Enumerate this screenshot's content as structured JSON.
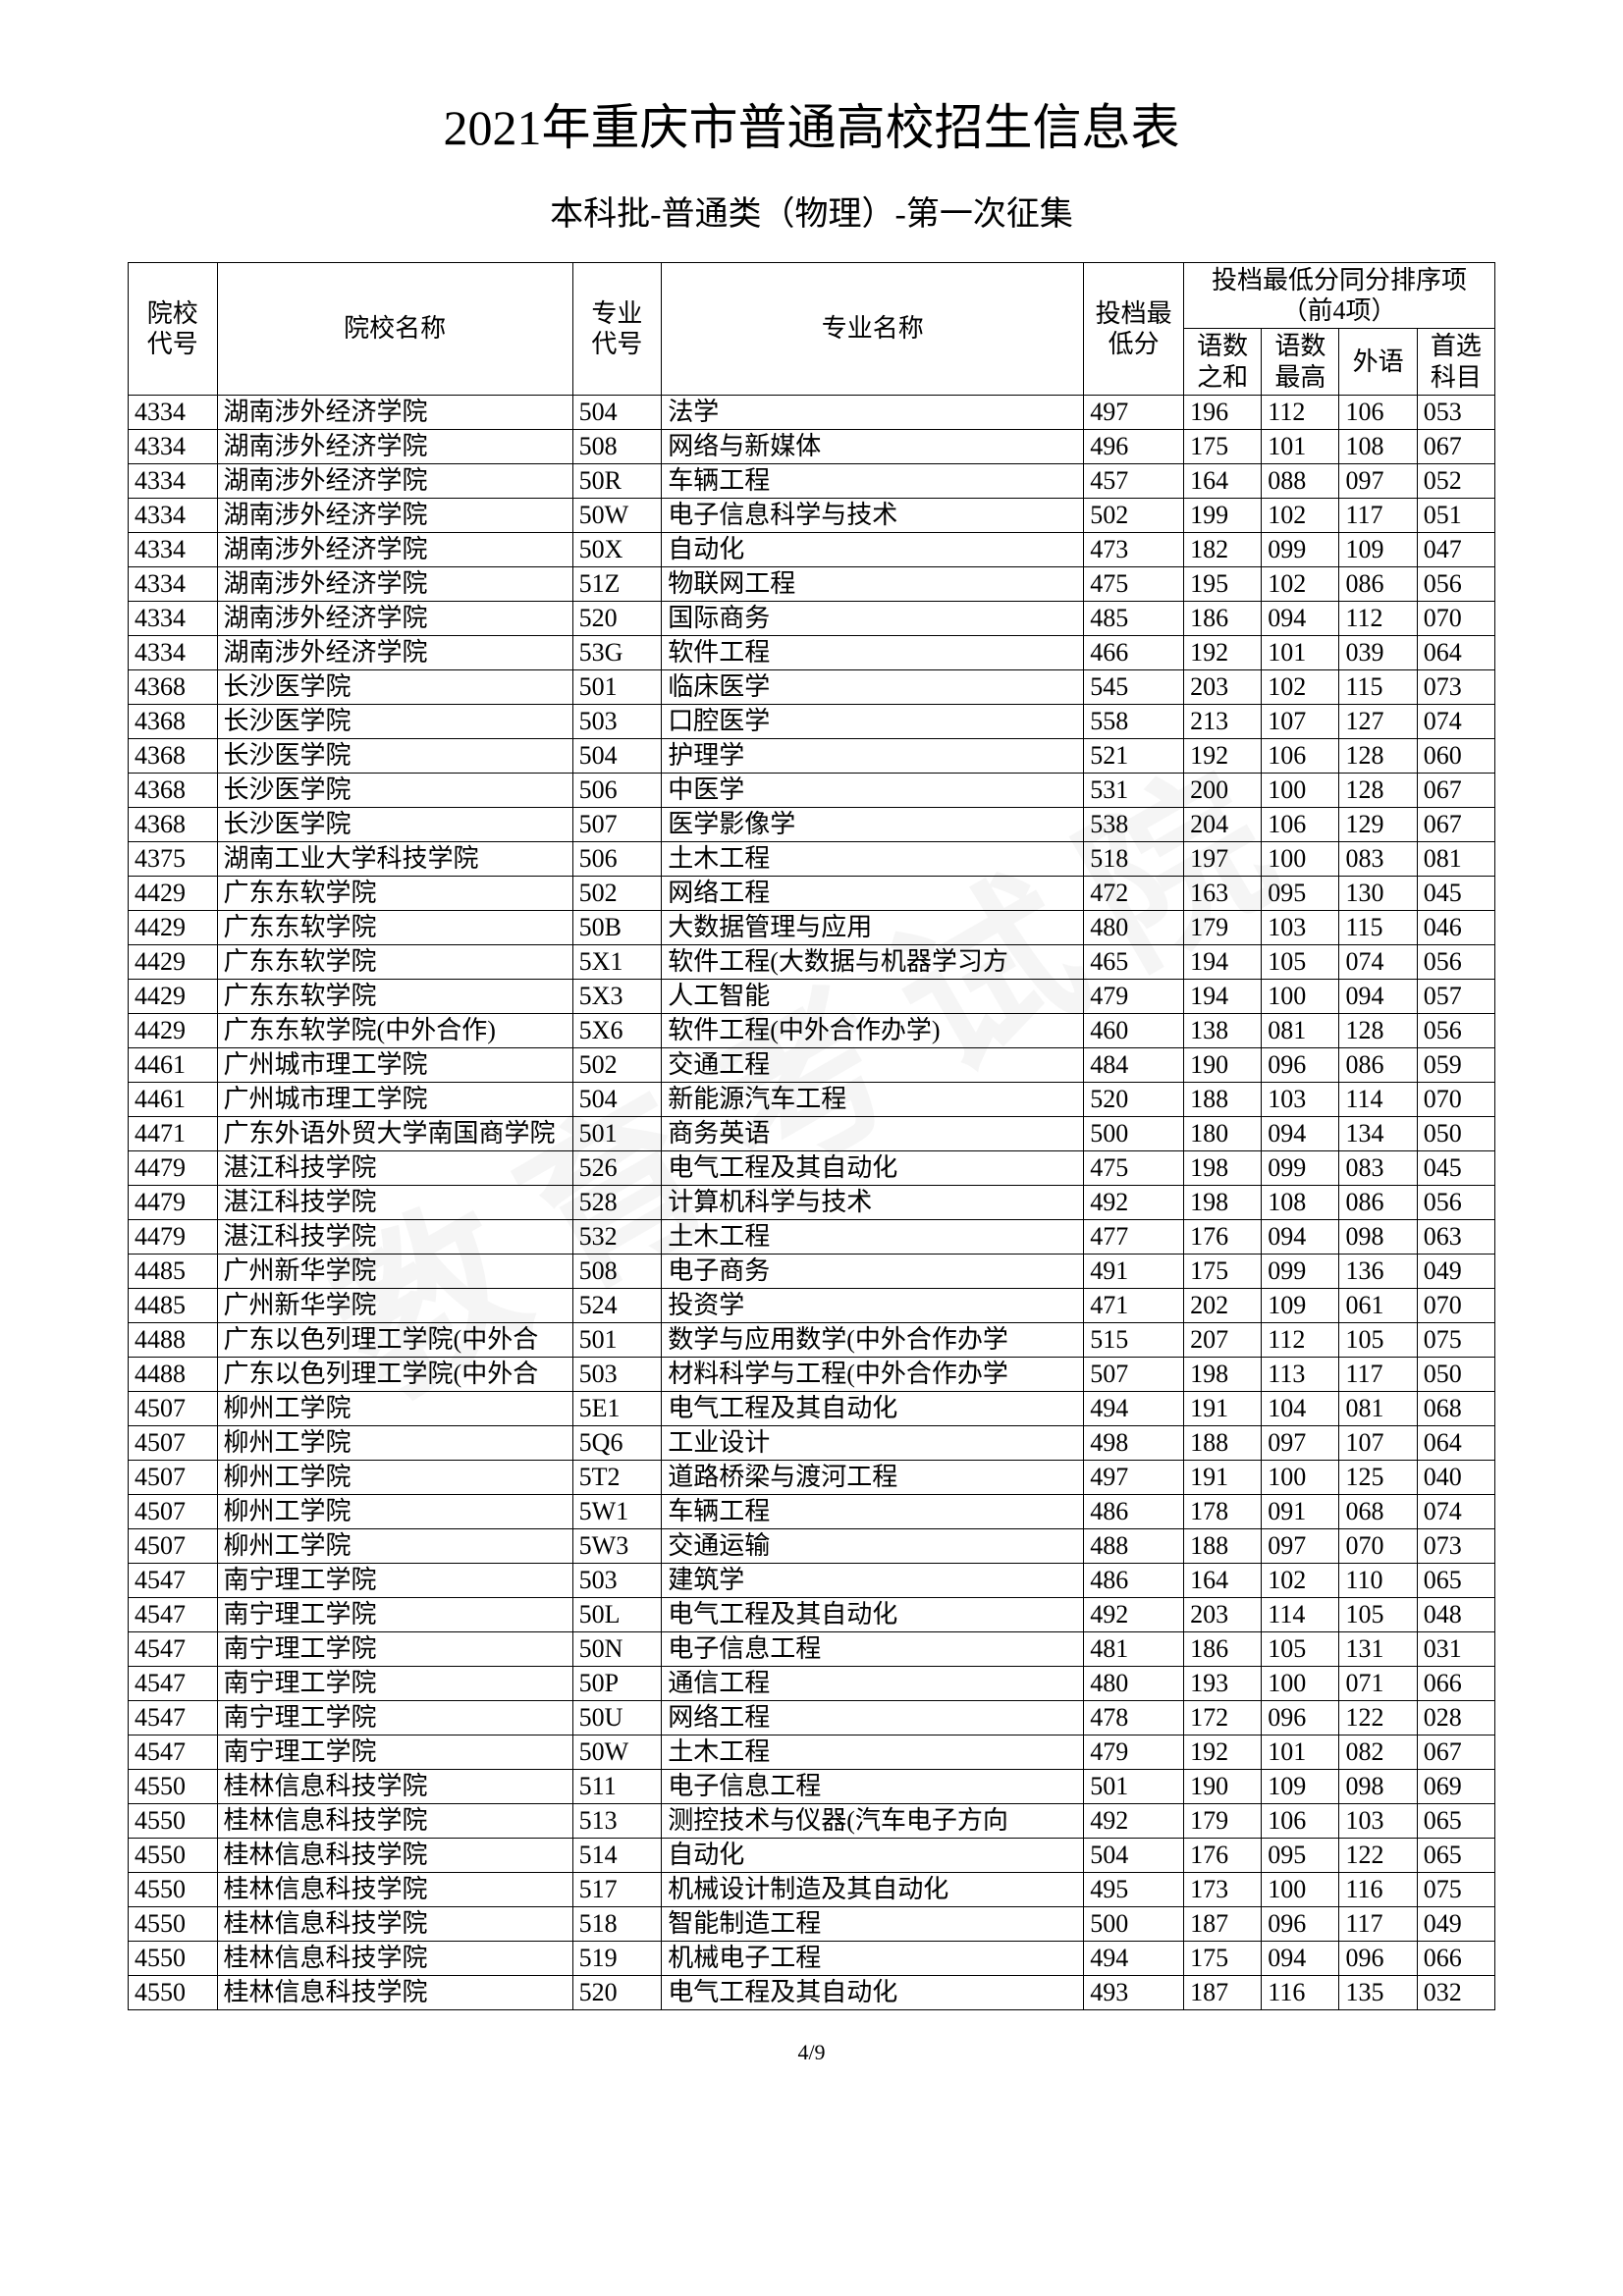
{
  "title": "2021年重庆市普通高校招生信息表",
  "subtitle": "本科批-普通类（物理）-第一次征集",
  "page_indicator": "4/9",
  "watermark_text": "教育考试院",
  "colors": {
    "text": "#000000",
    "background": "#ffffff",
    "border": "#000000",
    "watermark": "rgba(0,0,0,0.04)"
  },
  "headers": {
    "school_code": "院校代号",
    "school_name": "院校名称",
    "major_code": "专业代号",
    "major_name": "专业名称",
    "min_score": "投档最低分",
    "sort_group": "投档最低分同分排序项（前4项）",
    "s1": "语数之和",
    "s2": "语数最高",
    "s3": "外语",
    "s4": "首选科目"
  },
  "rows": [
    {
      "c": "4334",
      "n": "湖南涉外经济学院",
      "mc": "504",
      "mn": "法学",
      "sc": "497",
      "s1": "196",
      "s2": "112",
      "s3": "106",
      "s4": "053"
    },
    {
      "c": "4334",
      "n": "湖南涉外经济学院",
      "mc": "508",
      "mn": "网络与新媒体",
      "sc": "496",
      "s1": "175",
      "s2": "101",
      "s3": "108",
      "s4": "067"
    },
    {
      "c": "4334",
      "n": "湖南涉外经济学院",
      "mc": "50R",
      "mn": "车辆工程",
      "sc": "457",
      "s1": "164",
      "s2": "088",
      "s3": "097",
      "s4": "052"
    },
    {
      "c": "4334",
      "n": "湖南涉外经济学院",
      "mc": "50W",
      "mn": "电子信息科学与技术",
      "sc": "502",
      "s1": "199",
      "s2": "102",
      "s3": "117",
      "s4": "051"
    },
    {
      "c": "4334",
      "n": "湖南涉外经济学院",
      "mc": "50X",
      "mn": "自动化",
      "sc": "473",
      "s1": "182",
      "s2": "099",
      "s3": "109",
      "s4": "047"
    },
    {
      "c": "4334",
      "n": "湖南涉外经济学院",
      "mc": "51Z",
      "mn": "物联网工程",
      "sc": "475",
      "s1": "195",
      "s2": "102",
      "s3": "086",
      "s4": "056"
    },
    {
      "c": "4334",
      "n": "湖南涉外经济学院",
      "mc": "520",
      "mn": "国际商务",
      "sc": "485",
      "s1": "186",
      "s2": "094",
      "s3": "112",
      "s4": "070"
    },
    {
      "c": "4334",
      "n": "湖南涉外经济学院",
      "mc": "53G",
      "mn": "软件工程",
      "sc": "466",
      "s1": "192",
      "s2": "101",
      "s3": "039",
      "s4": "064"
    },
    {
      "c": "4368",
      "n": "长沙医学院",
      "mc": "501",
      "mn": "临床医学",
      "sc": "545",
      "s1": "203",
      "s2": "102",
      "s3": "115",
      "s4": "073"
    },
    {
      "c": "4368",
      "n": "长沙医学院",
      "mc": "503",
      "mn": "口腔医学",
      "sc": "558",
      "s1": "213",
      "s2": "107",
      "s3": "127",
      "s4": "074"
    },
    {
      "c": "4368",
      "n": "长沙医学院",
      "mc": "504",
      "mn": "护理学",
      "sc": "521",
      "s1": "192",
      "s2": "106",
      "s3": "128",
      "s4": "060"
    },
    {
      "c": "4368",
      "n": "长沙医学院",
      "mc": "506",
      "mn": "中医学",
      "sc": "531",
      "s1": "200",
      "s2": "100",
      "s3": "128",
      "s4": "067"
    },
    {
      "c": "4368",
      "n": "长沙医学院",
      "mc": "507",
      "mn": "医学影像学",
      "sc": "538",
      "s1": "204",
      "s2": "106",
      "s3": "129",
      "s4": "067"
    },
    {
      "c": "4375",
      "n": "湖南工业大学科技学院",
      "mc": "506",
      "mn": "土木工程",
      "sc": "518",
      "s1": "197",
      "s2": "100",
      "s3": "083",
      "s4": "081"
    },
    {
      "c": "4429",
      "n": "广东东软学院",
      "mc": "502",
      "mn": "网络工程",
      "sc": "472",
      "s1": "163",
      "s2": "095",
      "s3": "130",
      "s4": "045"
    },
    {
      "c": "4429",
      "n": "广东东软学院",
      "mc": "50B",
      "mn": "大数据管理与应用",
      "sc": "480",
      "s1": "179",
      "s2": "103",
      "s3": "115",
      "s4": "046"
    },
    {
      "c": "4429",
      "n": "广东东软学院",
      "mc": "5X1",
      "mn": "软件工程(大数据与机器学习方",
      "sc": "465",
      "s1": "194",
      "s2": "105",
      "s3": "074",
      "s4": "056"
    },
    {
      "c": "4429",
      "n": "广东东软学院",
      "mc": "5X3",
      "mn": "人工智能",
      "sc": "479",
      "s1": "194",
      "s2": "100",
      "s3": "094",
      "s4": "057"
    },
    {
      "c": "4429",
      "n": "广东东软学院(中外合作)",
      "mc": "5X6",
      "mn": "软件工程(中外合作办学)",
      "sc": "460",
      "s1": "138",
      "s2": "081",
      "s3": "128",
      "s4": "056"
    },
    {
      "c": "4461",
      "n": "广州城市理工学院",
      "mc": "502",
      "mn": "交通工程",
      "sc": "484",
      "s1": "190",
      "s2": "096",
      "s3": "086",
      "s4": "059"
    },
    {
      "c": "4461",
      "n": "广州城市理工学院",
      "mc": "504",
      "mn": "新能源汽车工程",
      "sc": "520",
      "s1": "188",
      "s2": "103",
      "s3": "114",
      "s4": "070"
    },
    {
      "c": "4471",
      "n": "广东外语外贸大学南国商学院",
      "mc": "501",
      "mn": "商务英语",
      "sc": "500",
      "s1": "180",
      "s2": "094",
      "s3": "134",
      "s4": "050"
    },
    {
      "c": "4479",
      "n": "湛江科技学院",
      "mc": "526",
      "mn": "电气工程及其自动化",
      "sc": "475",
      "s1": "198",
      "s2": "099",
      "s3": "083",
      "s4": "045"
    },
    {
      "c": "4479",
      "n": "湛江科技学院",
      "mc": "528",
      "mn": "计算机科学与技术",
      "sc": "492",
      "s1": "198",
      "s2": "108",
      "s3": "086",
      "s4": "056"
    },
    {
      "c": "4479",
      "n": "湛江科技学院",
      "mc": "532",
      "mn": "土木工程",
      "sc": "477",
      "s1": "176",
      "s2": "094",
      "s3": "098",
      "s4": "063"
    },
    {
      "c": "4485",
      "n": "广州新华学院",
      "mc": "508",
      "mn": "电子商务",
      "sc": "491",
      "s1": "175",
      "s2": "099",
      "s3": "136",
      "s4": "049"
    },
    {
      "c": "4485",
      "n": "广州新华学院",
      "mc": "524",
      "mn": "投资学",
      "sc": "471",
      "s1": "202",
      "s2": "109",
      "s3": "061",
      "s4": "070"
    },
    {
      "c": "4488",
      "n": "广东以色列理工学院(中外合",
      "mc": "501",
      "mn": "数学与应用数学(中外合作办学",
      "sc": "515",
      "s1": "207",
      "s2": "112",
      "s3": "105",
      "s4": "075"
    },
    {
      "c": "4488",
      "n": "广东以色列理工学院(中外合",
      "mc": "503",
      "mn": "材料科学与工程(中外合作办学",
      "sc": "507",
      "s1": "198",
      "s2": "113",
      "s3": "117",
      "s4": "050"
    },
    {
      "c": "4507",
      "n": "柳州工学院",
      "mc": "5E1",
      "mn": "电气工程及其自动化",
      "sc": "494",
      "s1": "191",
      "s2": "104",
      "s3": "081",
      "s4": "068"
    },
    {
      "c": "4507",
      "n": "柳州工学院",
      "mc": "5Q6",
      "mn": "工业设计",
      "sc": "498",
      "s1": "188",
      "s2": "097",
      "s3": "107",
      "s4": "064"
    },
    {
      "c": "4507",
      "n": "柳州工学院",
      "mc": "5T2",
      "mn": "道路桥梁与渡河工程",
      "sc": "497",
      "s1": "191",
      "s2": "100",
      "s3": "125",
      "s4": "040"
    },
    {
      "c": "4507",
      "n": "柳州工学院",
      "mc": "5W1",
      "mn": "车辆工程",
      "sc": "486",
      "s1": "178",
      "s2": "091",
      "s3": "068",
      "s4": "074"
    },
    {
      "c": "4507",
      "n": "柳州工学院",
      "mc": "5W3",
      "mn": "交通运输",
      "sc": "488",
      "s1": "188",
      "s2": "097",
      "s3": "070",
      "s4": "073"
    },
    {
      "c": "4547",
      "n": "南宁理工学院",
      "mc": "503",
      "mn": "建筑学",
      "sc": "486",
      "s1": "164",
      "s2": "102",
      "s3": "110",
      "s4": "065"
    },
    {
      "c": "4547",
      "n": "南宁理工学院",
      "mc": "50L",
      "mn": "电气工程及其自动化",
      "sc": "492",
      "s1": "203",
      "s2": "114",
      "s3": "105",
      "s4": "048"
    },
    {
      "c": "4547",
      "n": "南宁理工学院",
      "mc": "50N",
      "mn": "电子信息工程",
      "sc": "481",
      "s1": "186",
      "s2": "105",
      "s3": "131",
      "s4": "031"
    },
    {
      "c": "4547",
      "n": "南宁理工学院",
      "mc": "50P",
      "mn": "通信工程",
      "sc": "480",
      "s1": "193",
      "s2": "100",
      "s3": "071",
      "s4": "066"
    },
    {
      "c": "4547",
      "n": "南宁理工学院",
      "mc": "50U",
      "mn": "网络工程",
      "sc": "478",
      "s1": "172",
      "s2": "096",
      "s3": "122",
      "s4": "028"
    },
    {
      "c": "4547",
      "n": "南宁理工学院",
      "mc": "50W",
      "mn": "土木工程",
      "sc": "479",
      "s1": "192",
      "s2": "101",
      "s3": "082",
      "s4": "067"
    },
    {
      "c": "4550",
      "n": "桂林信息科技学院",
      "mc": "511",
      "mn": "电子信息工程",
      "sc": "501",
      "s1": "190",
      "s2": "109",
      "s3": "098",
      "s4": "069"
    },
    {
      "c": "4550",
      "n": "桂林信息科技学院",
      "mc": "513",
      "mn": "测控技术与仪器(汽车电子方向",
      "sc": "492",
      "s1": "179",
      "s2": "106",
      "s3": "103",
      "s4": "065"
    },
    {
      "c": "4550",
      "n": "桂林信息科技学院",
      "mc": "514",
      "mn": "自动化",
      "sc": "504",
      "s1": "176",
      "s2": "095",
      "s3": "122",
      "s4": "065"
    },
    {
      "c": "4550",
      "n": "桂林信息科技学院",
      "mc": "517",
      "mn": "机械设计制造及其自动化",
      "sc": "495",
      "s1": "173",
      "s2": "100",
      "s3": "116",
      "s4": "075"
    },
    {
      "c": "4550",
      "n": "桂林信息科技学院",
      "mc": "518",
      "mn": "智能制造工程",
      "sc": "500",
      "s1": "187",
      "s2": "096",
      "s3": "117",
      "s4": "049"
    },
    {
      "c": "4550",
      "n": "桂林信息科技学院",
      "mc": "519",
      "mn": "机械电子工程",
      "sc": "494",
      "s1": "175",
      "s2": "094",
      "s3": "096",
      "s4": "066"
    },
    {
      "c": "4550",
      "n": "桂林信息科技学院",
      "mc": "520",
      "mn": "电气工程及其自动化",
      "sc": "493",
      "s1": "187",
      "s2": "116",
      "s3": "135",
      "s4": "032"
    }
  ]
}
